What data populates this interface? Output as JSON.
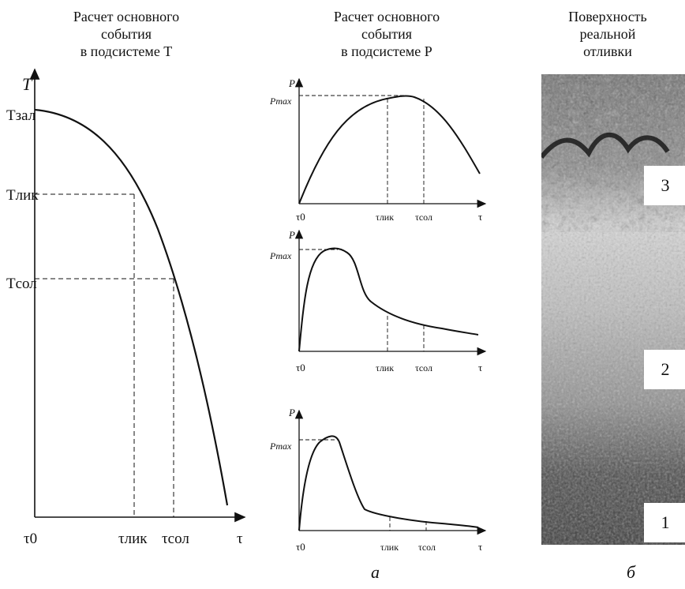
{
  "titles": {
    "T": [
      "Расчет основного",
      "события",
      "в подсистеме T"
    ],
    "P": [
      "Расчет основного",
      "события",
      "в подсистеме P"
    ],
    "S": [
      "Поверхность",
      "реальной",
      "отливки"
    ]
  },
  "chartT": {
    "y_axis": "T",
    "x_axis": "τ",
    "x0": "τ0",
    "t_zal": "Tзал",
    "t_lik": "Tлик",
    "t_sol": "Tсол",
    "tau_lik": "τлик",
    "tau_sol": "τсол"
  },
  "chartP": {
    "y_axis": "P",
    "pmax": "Pmax",
    "x0": "τ0",
    "tau_lik": "τлик",
    "tau_sol": "τсол",
    "x_axis": "τ"
  },
  "photo": {
    "zones": [
      "3",
      "2",
      "1"
    ]
  },
  "captions": {
    "a": "а",
    "b": "б"
  }
}
